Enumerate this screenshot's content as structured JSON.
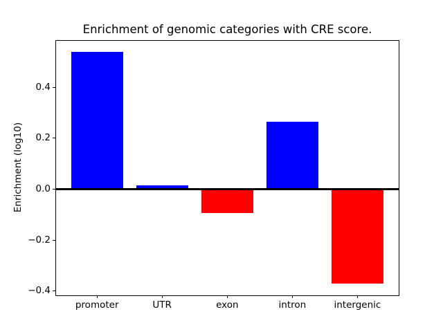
{
  "figure": {
    "background": "#ffffff",
    "text_color": "#000000",
    "spine_color": "#000000"
  },
  "chart_data": {
    "type": "bar",
    "title": "Enrichment of genomic categories with CRE score.",
    "xlabel": "",
    "ylabel": "Enrichment (log10)",
    "categories": [
      "promoter",
      "UTR",
      "exon",
      "intron",
      "intergenic"
    ],
    "values": [
      0.54,
      0.014,
      -0.093,
      0.266,
      -0.37
    ],
    "bar_colors": [
      "#0000ff",
      "#0000ff",
      "#ff0000",
      "#0000ff",
      "#ff0000"
    ],
    "positive_color": "#0000ff",
    "negative_color": "#ff0000",
    "bar_width": 0.8,
    "yticks": [
      0.4,
      0.2,
      0.0,
      -0.2,
      -0.4
    ],
    "ytick_labels": [
      "0.4",
      "0.2",
      "0.0",
      "−0.2",
      "−0.4"
    ],
    "ylim": [
      -0.417,
      0.586
    ],
    "xlim": [
      -0.64,
      4.64
    ],
    "grid": false,
    "legend": "none",
    "zero_line": true
  }
}
